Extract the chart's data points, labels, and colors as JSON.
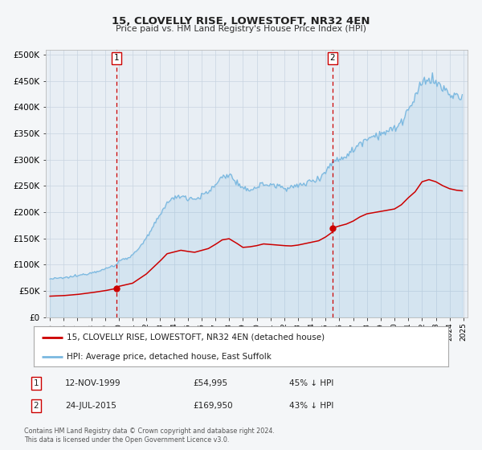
{
  "title": "15, CLOVELLY RISE, LOWESTOFT, NR32 4EN",
  "subtitle": "Price paid vs. HM Land Registry's House Price Index (HPI)",
  "legend_line1": "15, CLOVELLY RISE, LOWESTOFT, NR32 4EN (detached house)",
  "legend_line2": "HPI: Average price, detached house, East Suffolk",
  "annotation1_label": "1",
  "annotation1_date": "12-NOV-1999",
  "annotation1_price": "£54,995",
  "annotation1_hpi": "45% ↓ HPI",
  "annotation2_label": "2",
  "annotation2_date": "24-JUL-2015",
  "annotation2_price": "£169,950",
  "annotation2_hpi": "43% ↓ HPI",
  "footer1": "Contains HM Land Registry data © Crown copyright and database right 2024.",
  "footer2": "This data is licensed under the Open Government Licence v3.0.",
  "hpi_color": "#7ab8e0",
  "price_color": "#cc0000",
  "marker_color": "#cc0000",
  "vline_color": "#cc0000",
  "grid_color": "#c8d4e0",
  "background_color": "#f4f6f8",
  "plot_bg_color": "#e8eef4",
  "ylim_max": 510000,
  "xlim_start": 1994.7,
  "xlim_end": 2025.3,
  "sale1_year_f": 1999.833,
  "sale1_price": 54995,
  "sale2_year_f": 2015.5,
  "sale2_price": 169950,
  "hpi_anchors_x": [
    1995.0,
    1996.0,
    1997.0,
    1998.0,
    1999.0,
    1999.833,
    2000.0,
    2001.0,
    2002.0,
    2003.0,
    2003.5,
    2004.5,
    2005.0,
    2005.5,
    2006.5,
    2007.0,
    2007.5,
    2008.0,
    2008.5,
    2009.0,
    2009.5,
    2010.0,
    2010.5,
    2011.0,
    2011.5,
    2012.0,
    2012.5,
    2013.0,
    2013.5,
    2014.0,
    2014.5,
    2015.0,
    2015.5,
    2016.0,
    2016.5,
    2017.0,
    2017.5,
    2018.0,
    2018.5,
    2019.0,
    2019.5,
    2020.0,
    2020.5,
    2021.0,
    2021.5,
    2022.0,
    2022.5,
    2023.0,
    2023.5,
    2024.0,
    2024.5,
    2024.9
  ],
  "hpi_anchors_y": [
    73000,
    75000,
    79000,
    85000,
    92000,
    100000,
    107000,
    118000,
    150000,
    195000,
    220000,
    232000,
    228000,
    225000,
    238000,
    252000,
    268000,
    272000,
    258000,
    242000,
    244000,
    248000,
    254000,
    252000,
    250000,
    248000,
    247000,
    250000,
    255000,
    260000,
    265000,
    278000,
    295000,
    302000,
    308000,
    318000,
    332000,
    342000,
    346000,
    350000,
    354000,
    358000,
    372000,
    395000,
    415000,
    448000,
    455000,
    448000,
    435000,
    425000,
    420000,
    418000
  ]
}
